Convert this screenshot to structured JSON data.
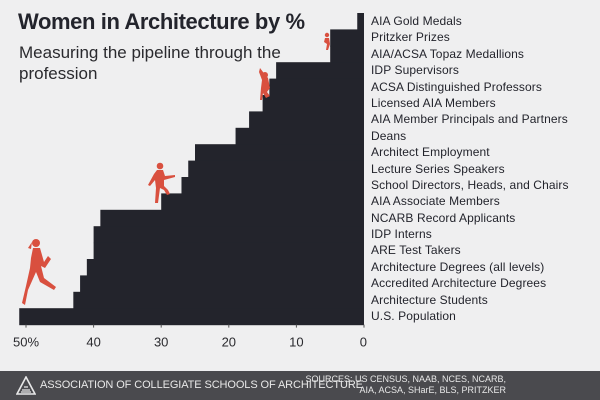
{
  "title": "Women in Architecture by %",
  "subtitle": "Measuring the pipeline through the profession",
  "chart_data": {
    "type": "bar",
    "orientation": "horizontal",
    "x_reversed": true,
    "categories": [
      "AIA Gold Medals",
      "Pritzker Prizes",
      "AIA/ACSA Topaz Medallions",
      "IDP Supervisors",
      "ACSA Distinguished Professors",
      "Licensed AIA Members",
      "AIA Member Principals and Partners",
      "Deans",
      "Architect Employment",
      "Lecture Series Speakers",
      "School Directors, Heads, and Chairs",
      "AIA Associate Members",
      "NCARB Record Applicants",
      "IDP Interns",
      "ARE Test Takers",
      "Architecture Degrees (all levels)",
      "Accredited Architecture Degrees",
      "Architecture Students",
      "U.S. Population"
    ],
    "values": [
      1,
      5,
      5,
      13,
      14,
      15,
      17,
      19,
      25,
      26,
      27,
      30,
      39,
      40,
      40,
      41,
      42,
      43,
      51
    ],
    "xlim": [
      0,
      52
    ],
    "xticks": [
      50,
      40,
      30,
      20,
      10,
      0
    ],
    "xtick_labels": [
      "50%",
      "40",
      "30",
      "20",
      "10",
      "0"
    ],
    "grid": false,
    "bar_color": "#23242c",
    "figure_color": "#d9503f"
  },
  "footer": {
    "organization": "ASSOCIATION OF COLLEGIATE SCHOOLS OF ARCHITECTURE",
    "sources_line1": "SOURCES: US CENSUS, NAAB, NCES, NCARB,",
    "sources_line2": "AIA, ACSA, SHarE, BLS, PRITZKER"
  }
}
